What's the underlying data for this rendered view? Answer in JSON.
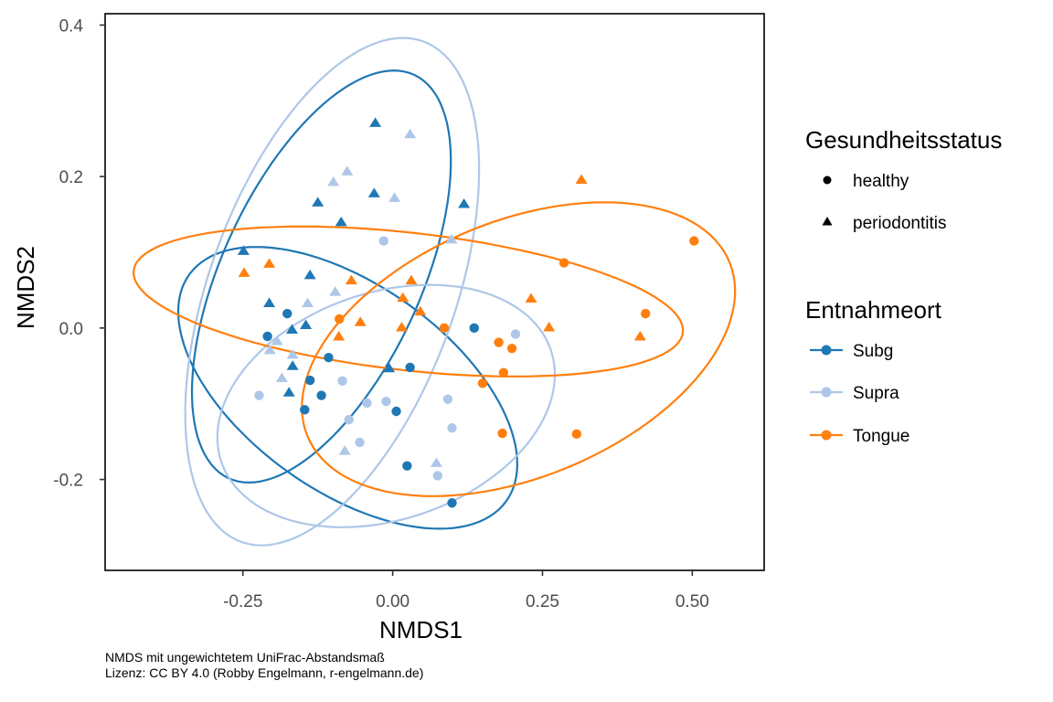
{
  "chart_data": {
    "type": "scatter",
    "xlabel": "NMDS1",
    "ylabel": "NMDS2",
    "xlim": [
      -0.48,
      0.62
    ],
    "ylim": [
      -0.32,
      0.415
    ],
    "xticks": [
      -0.25,
      0.0,
      0.25,
      0.5
    ],
    "xtick_labels": [
      "-0.25",
      "0.00",
      "0.25",
      "0.50"
    ],
    "yticks": [
      -0.2,
      0.0,
      0.2,
      0.4
    ],
    "ytick_labels": [
      "-0.2",
      "0.0",
      "0.2",
      "0.4"
    ],
    "grid": false,
    "legend_placement": "right",
    "legends": [
      {
        "title": "Gesundheitsstatus",
        "entries": [
          {
            "label": "healthy",
            "shape": "circle"
          },
          {
            "label": "periodontitis",
            "shape": "triangle"
          }
        ]
      },
      {
        "title": "Entnahmeort",
        "entries": [
          {
            "label": "Subg",
            "color": "#1f77b4"
          },
          {
            "label": "Supra",
            "color": "#aec7e8"
          },
          {
            "label": "Tongue",
            "color": "#ff7f0e"
          }
        ]
      }
    ],
    "series": [
      {
        "name": "Subg",
        "color": "#1f77b4",
        "points": [
          {
            "x": -0.029,
            "y": 0.271,
            "status": "periodontitis"
          },
          {
            "x": -0.031,
            "y": 0.178,
            "status": "periodontitis"
          },
          {
            "x": -0.125,
            "y": 0.166,
            "status": "periodontitis"
          },
          {
            "x": 0.119,
            "y": 0.164,
            "status": "periodontitis"
          },
          {
            "x": -0.086,
            "y": 0.14,
            "status": "periodontitis"
          },
          {
            "x": -0.249,
            "y": 0.102,
            "status": "periodontitis"
          },
          {
            "x": -0.138,
            "y": 0.07,
            "status": "periodontitis"
          },
          {
            "x": -0.206,
            "y": 0.033,
            "status": "periodontitis"
          },
          {
            "x": -0.145,
            "y": 0.004,
            "status": "periodontitis"
          },
          {
            "x": -0.168,
            "y": -0.002,
            "status": "periodontitis"
          },
          {
            "x": -0.167,
            "y": -0.05,
            "status": "periodontitis"
          },
          {
            "x": -0.173,
            "y": -0.085,
            "status": "periodontitis"
          },
          {
            "x": -0.006,
            "y": -0.053,
            "status": "periodontitis"
          },
          {
            "x": -0.176,
            "y": 0.019,
            "status": "healthy"
          },
          {
            "x": -0.209,
            "y": -0.011,
            "status": "healthy"
          },
          {
            "x": -0.107,
            "y": -0.039,
            "status": "healthy"
          },
          {
            "x": 0.029,
            "y": -0.052,
            "status": "healthy"
          },
          {
            "x": -0.138,
            "y": -0.069,
            "status": "healthy"
          },
          {
            "x": -0.119,
            "y": -0.089,
            "status": "healthy"
          },
          {
            "x": -0.147,
            "y": -0.108,
            "status": "healthy"
          },
          {
            "x": 0.006,
            "y": -0.11,
            "status": "healthy"
          },
          {
            "x": 0.024,
            "y": -0.182,
            "status": "healthy"
          },
          {
            "x": 0.099,
            "y": -0.231,
            "status": "healthy"
          },
          {
            "x": 0.136,
            "y": 0.0,
            "status": "healthy"
          }
        ]
      },
      {
        "name": "Supra",
        "color": "#aec7e8",
        "points": [
          {
            "x": 0.029,
            "y": 0.256,
            "status": "periodontitis"
          },
          {
            "x": -0.076,
            "y": 0.207,
            "status": "periodontitis"
          },
          {
            "x": -0.099,
            "y": 0.193,
            "status": "periodontitis"
          },
          {
            "x": 0.003,
            "y": 0.172,
            "status": "periodontitis"
          },
          {
            "x": 0.098,
            "y": 0.117,
            "status": "periodontitis"
          },
          {
            "x": -0.096,
            "y": 0.048,
            "status": "periodontitis"
          },
          {
            "x": -0.142,
            "y": 0.033,
            "status": "periodontitis"
          },
          {
            "x": -0.193,
            "y": -0.017,
            "status": "periodontitis"
          },
          {
            "x": -0.205,
            "y": -0.029,
            "status": "periodontitis"
          },
          {
            "x": -0.167,
            "y": -0.035,
            "status": "periodontitis"
          },
          {
            "x": -0.185,
            "y": -0.066,
            "status": "periodontitis"
          },
          {
            "x": -0.08,
            "y": -0.162,
            "status": "periodontitis"
          },
          {
            "x": 0.073,
            "y": -0.178,
            "status": "periodontitis"
          },
          {
            "x": -0.015,
            "y": 0.115,
            "status": "healthy"
          },
          {
            "x": -0.223,
            "y": -0.089,
            "status": "healthy"
          },
          {
            "x": -0.084,
            "y": -0.07,
            "status": "healthy"
          },
          {
            "x": -0.043,
            "y": -0.099,
            "status": "healthy"
          },
          {
            "x": -0.011,
            "y": -0.097,
            "status": "healthy"
          },
          {
            "x": -0.073,
            "y": -0.121,
            "status": "healthy"
          },
          {
            "x": -0.055,
            "y": -0.151,
            "status": "healthy"
          },
          {
            "x": 0.205,
            "y": -0.008,
            "status": "healthy"
          },
          {
            "x": 0.092,
            "y": -0.094,
            "status": "healthy"
          },
          {
            "x": 0.099,
            "y": -0.132,
            "status": "healthy"
          },
          {
            "x": 0.075,
            "y": -0.195,
            "status": "healthy"
          }
        ]
      },
      {
        "name": "Tongue",
        "color": "#ff7f0e",
        "points": [
          {
            "x": 0.315,
            "y": 0.196,
            "status": "periodontitis"
          },
          {
            "x": -0.206,
            "y": 0.085,
            "status": "periodontitis"
          },
          {
            "x": -0.248,
            "y": 0.073,
            "status": "periodontitis"
          },
          {
            "x": -0.069,
            "y": 0.063,
            "status": "periodontitis"
          },
          {
            "x": 0.031,
            "y": 0.063,
            "status": "periodontitis"
          },
          {
            "x": 0.017,
            "y": 0.04,
            "status": "periodontitis"
          },
          {
            "x": 0.046,
            "y": 0.022,
            "status": "periodontitis"
          },
          {
            "x": 0.015,
            "y": 0.001,
            "status": "periodontitis"
          },
          {
            "x": 0.231,
            "y": 0.039,
            "status": "periodontitis"
          },
          {
            "x": 0.261,
            "y": 0.001,
            "status": "periodontitis"
          },
          {
            "x": 0.413,
            "y": -0.011,
            "status": "periodontitis"
          },
          {
            "x": -0.09,
            "y": -0.011,
            "status": "periodontitis"
          },
          {
            "x": -0.054,
            "y": 0.008,
            "status": "periodontitis"
          },
          {
            "x": 0.503,
            "y": 0.115,
            "status": "healthy"
          },
          {
            "x": 0.286,
            "y": 0.086,
            "status": "healthy"
          },
          {
            "x": 0.422,
            "y": 0.019,
            "status": "healthy"
          },
          {
            "x": 0.086,
            "y": 0.0,
            "status": "healthy"
          },
          {
            "x": -0.089,
            "y": 0.012,
            "status": "healthy"
          },
          {
            "x": 0.177,
            "y": -0.019,
            "status": "healthy"
          },
          {
            "x": 0.199,
            "y": -0.027,
            "status": "healthy"
          },
          {
            "x": 0.185,
            "y": -0.059,
            "status": "healthy"
          },
          {
            "x": 0.15,
            "y": -0.073,
            "status": "healthy"
          },
          {
            "x": 0.183,
            "y": -0.139,
            "status": "healthy"
          },
          {
            "x": 0.307,
            "y": -0.14,
            "status": "healthy"
          }
        ]
      }
    ],
    "ellipses": [
      {
        "group": "Subg",
        "color": "#1f77b4",
        "center": [
          -0.119,
          0.068
        ],
        "a": [
          0.121,
          0.272
        ],
        "b": [
          0.179,
          0.0
        ]
      },
      {
        "group": "Subg",
        "color": "#1f77b4",
        "center": [
          -0.075,
          -0.079
        ],
        "a": [
          -0.153,
          0.186
        ],
        "b": [
          0.238,
          0.0
        ]
      },
      {
        "group": "Supra",
        "color": "#aec7e8",
        "center": [
          -0.101,
          0.048
        ],
        "a": [
          0.118,
          0.335
        ],
        "b": [
          0.215,
          0.0
        ]
      },
      {
        "group": "Supra",
        "color": "#aec7e8",
        "center": [
          -0.011,
          -0.103
        ],
        "a": [
          0.073,
          0.16
        ],
        "b": [
          0.272,
          0.0
        ]
      },
      {
        "group": "Tongue",
        "color": "#ff7f0e",
        "center": [
          0.026,
          0.035
        ],
        "a": [
          -0.177,
          0.099
        ],
        "b": [
          0.423,
          0.0
        ]
      },
      {
        "group": "Tongue",
        "color": "#ff7f0e",
        "center": [
          0.21,
          -0.028
        ],
        "a": [
          0.143,
          0.194
        ],
        "b": [
          0.332,
          0.0
        ]
      }
    ]
  },
  "caption": {
    "line1": "NMDS mit ungewichtetem UniFrac-Abstandsmaß",
    "line2": "Lizenz: CC BY 4.0 (Robby Engelmann, r-engelmann.de)"
  }
}
